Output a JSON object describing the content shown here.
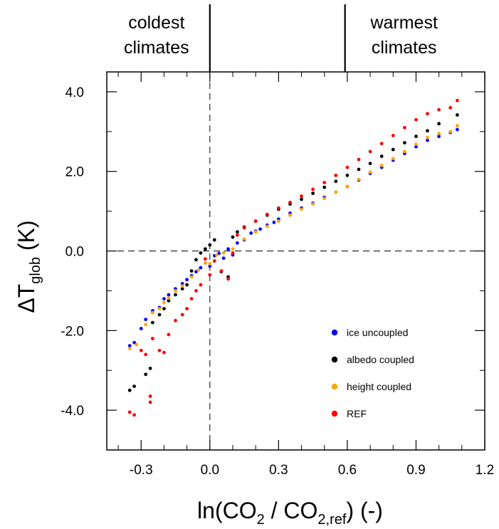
{
  "chart_data": {
    "type": "scatter",
    "title": "",
    "xlabel": {
      "main": "ln(CO",
      "sub1": "2",
      "mid": " / CO",
      "sub2": "2,ref",
      "tail": ") (-)"
    },
    "ylabel": {
      "main": "ΔT",
      "sub": "glob",
      "tail": " (K)"
    },
    "xlim": [
      -0.45,
      1.2
    ],
    "ylim": [
      -5.0,
      4.5
    ],
    "x_ticks": [
      -0.3,
      0.0,
      0.3,
      0.6,
      0.9,
      1.2
    ],
    "x_tick_labels": [
      "-0.3",
      "0.0",
      "0.3",
      "0.6",
      "0.9",
      "1.2"
    ],
    "y_ticks": [
      -4.0,
      -2.0,
      0.0,
      2.0,
      4.0
    ],
    "y_tick_labels": [
      "-4.0",
      "-2.0",
      "0.0",
      "2.0",
      "4.0"
    ],
    "top_regions": [
      {
        "label_lines": [
          "coldest",
          "climates"
        ],
        "boundary_x": 0.0,
        "side": "left"
      },
      {
        "label_lines": [
          "warmest",
          "climates"
        ],
        "boundary_x": 0.59,
        "side": "right"
      }
    ],
    "reference_lines": {
      "vertical_x": 0.0,
      "horizontal_y": 0.0,
      "style": "dashed"
    },
    "legend_position": "lower-right",
    "series": [
      {
        "name": "ice uncoupled",
        "color": "#0000ff",
        "points": [
          [
            -0.35,
            -2.38
          ],
          [
            -0.33,
            -2.3
          ],
          [
            -0.3,
            -1.95
          ],
          [
            -0.28,
            -1.72
          ],
          [
            -0.25,
            -1.5
          ],
          [
            -0.22,
            -1.42
          ],
          [
            -0.2,
            -1.2
          ],
          [
            -0.18,
            -1.1
          ],
          [
            -0.15,
            -0.95
          ],
          [
            -0.12,
            -0.82
          ],
          [
            -0.1,
            -0.72
          ],
          [
            -0.08,
            -0.62
          ],
          [
            -0.06,
            -0.52
          ],
          [
            -0.04,
            -0.42
          ],
          [
            -0.02,
            -0.3
          ],
          [
            0.0,
            -0.38
          ],
          [
            0.02,
            -0.12
          ],
          [
            0.04,
            -0.06
          ],
          [
            0.06,
            -0.18
          ],
          [
            0.08,
            0.05
          ],
          [
            0.1,
            -0.1
          ],
          [
            0.12,
            0.2
          ],
          [
            0.15,
            0.28
          ],
          [
            0.18,
            0.45
          ],
          [
            0.2,
            0.5
          ],
          [
            0.22,
            0.55
          ],
          [
            0.25,
            0.65
          ],
          [
            0.28,
            0.72
          ],
          [
            0.3,
            0.8
          ],
          [
            0.35,
            0.95
          ],
          [
            0.4,
            1.08
          ],
          [
            0.45,
            1.2
          ],
          [
            0.5,
            1.35
          ],
          [
            0.55,
            1.48
          ],
          [
            0.6,
            1.62
          ],
          [
            0.65,
            1.78
          ],
          [
            0.7,
            1.95
          ],
          [
            0.75,
            2.1
          ],
          [
            0.8,
            2.28
          ],
          [
            0.85,
            2.45
          ],
          [
            0.9,
            2.62
          ],
          [
            0.95,
            2.78
          ],
          [
            1.0,
            2.88
          ],
          [
            1.05,
            2.98
          ],
          [
            1.08,
            3.05
          ]
        ]
      },
      {
        "name": "albedo coupled",
        "color": "#000000",
        "points": [
          [
            -0.35,
            -3.5
          ],
          [
            -0.33,
            -3.4
          ],
          [
            -0.28,
            -3.1
          ],
          [
            -0.26,
            -2.95
          ],
          [
            -0.25,
            -1.8
          ],
          [
            -0.22,
            -1.6
          ],
          [
            -0.2,
            -1.45
          ],
          [
            -0.18,
            -1.25
          ],
          [
            -0.15,
            -1.1
          ],
          [
            -0.12,
            -0.95
          ],
          [
            -0.1,
            -0.85
          ],
          [
            -0.08,
            -0.5
          ],
          [
            -0.06,
            -0.22
          ],
          [
            -0.04,
            -0.05
          ],
          [
            -0.02,
            0.05
          ],
          [
            0.0,
            0.15
          ],
          [
            0.02,
            0.28
          ],
          [
            0.05,
            -0.52
          ],
          [
            0.08,
            -0.65
          ],
          [
            0.1,
            0.35
          ],
          [
            0.12,
            0.48
          ],
          [
            0.15,
            0.6
          ],
          [
            0.2,
            0.75
          ],
          [
            0.25,
            0.9
          ],
          [
            0.3,
            1.05
          ],
          [
            0.35,
            1.18
          ],
          [
            0.4,
            1.3
          ],
          [
            0.45,
            1.45
          ],
          [
            0.5,
            1.6
          ],
          [
            0.55,
            1.75
          ],
          [
            0.6,
            1.9
          ],
          [
            0.65,
            2.05
          ],
          [
            0.7,
            2.2
          ],
          [
            0.75,
            2.38
          ],
          [
            0.8,
            2.55
          ],
          [
            0.85,
            2.72
          ],
          [
            0.9,
            2.88
          ],
          [
            0.95,
            3.02
          ],
          [
            1.0,
            3.2
          ],
          [
            1.08,
            3.42
          ]
        ]
      },
      {
        "name": "height coupled",
        "color": "#ffa500",
        "points": [
          [
            -0.35,
            -2.45
          ],
          [
            -0.32,
            -2.35
          ],
          [
            -0.28,
            -1.85
          ],
          [
            -0.25,
            -1.55
          ],
          [
            -0.22,
            -1.45
          ],
          [
            -0.2,
            -1.3
          ],
          [
            -0.18,
            -1.18
          ],
          [
            -0.15,
            -1.0
          ],
          [
            -0.12,
            -0.88
          ],
          [
            -0.08,
            -0.65
          ],
          [
            -0.05,
            -0.48
          ],
          [
            -0.02,
            -0.3
          ],
          [
            0.0,
            -0.32
          ],
          [
            0.03,
            -0.1
          ],
          [
            0.06,
            -0.05
          ],
          [
            0.1,
            0.05
          ],
          [
            0.15,
            0.3
          ],
          [
            0.2,
            0.48
          ],
          [
            0.25,
            0.62
          ],
          [
            0.3,
            0.75
          ],
          [
            0.35,
            0.9
          ],
          [
            0.4,
            1.05
          ],
          [
            0.45,
            1.18
          ],
          [
            0.5,
            1.32
          ],
          [
            0.55,
            1.48
          ],
          [
            0.6,
            1.62
          ],
          [
            0.65,
            1.8
          ],
          [
            0.7,
            1.98
          ],
          [
            0.75,
            2.15
          ],
          [
            0.8,
            2.32
          ],
          [
            0.85,
            2.5
          ],
          [
            0.9,
            2.68
          ],
          [
            0.95,
            2.85
          ],
          [
            1.0,
            2.95
          ],
          [
            1.05,
            3.0
          ],
          [
            1.08,
            3.15
          ]
        ]
      },
      {
        "name": "REF",
        "color": "#ff0000",
        "points": [
          [
            -0.35,
            -4.05
          ],
          [
            -0.33,
            -4.12
          ],
          [
            -0.26,
            -3.65
          ],
          [
            -0.26,
            -3.8
          ],
          [
            -0.3,
            -2.5
          ],
          [
            -0.28,
            -2.6
          ],
          [
            -0.25,
            -2.2
          ],
          [
            -0.22,
            -2.5
          ],
          [
            -0.2,
            -2.55
          ],
          [
            -0.18,
            -2.1
          ],
          [
            -0.15,
            -1.75
          ],
          [
            -0.12,
            -1.6
          ],
          [
            -0.1,
            -1.45
          ],
          [
            -0.08,
            -1.2
          ],
          [
            -0.06,
            -1.0
          ],
          [
            -0.04,
            -0.85
          ],
          [
            -0.02,
            -0.2
          ],
          [
            0.0,
            -0.6
          ],
          [
            0.02,
            -0.25
          ],
          [
            0.05,
            -0.5
          ],
          [
            0.08,
            -0.7
          ],
          [
            0.1,
            -0.05
          ],
          [
            0.12,
            0.4
          ],
          [
            0.15,
            0.58
          ],
          [
            0.2,
            0.75
          ],
          [
            0.25,
            0.92
          ],
          [
            0.3,
            1.08
          ],
          [
            0.35,
            1.22
          ],
          [
            0.4,
            1.38
          ],
          [
            0.45,
            1.55
          ],
          [
            0.5,
            1.72
          ],
          [
            0.55,
            1.9
          ],
          [
            0.6,
            2.1
          ],
          [
            0.65,
            2.3
          ],
          [
            0.7,
            2.5
          ],
          [
            0.75,
            2.7
          ],
          [
            0.8,
            2.9
          ],
          [
            0.85,
            3.1
          ],
          [
            0.9,
            3.3
          ],
          [
            0.95,
            3.45
          ],
          [
            1.0,
            3.55
          ],
          [
            1.05,
            3.6
          ],
          [
            1.08,
            3.78
          ]
        ]
      }
    ]
  }
}
